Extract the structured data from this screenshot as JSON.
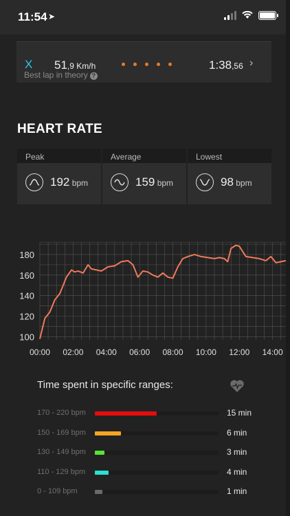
{
  "status_bar": {
    "time": "11:54"
  },
  "lap": {
    "marker": "X",
    "speed_main": "51",
    "speed_decimal": ",9",
    "speed_unit": " Km/h",
    "time_main": "1:38",
    "time_decimal": ",56",
    "caption": "Best lap in theory",
    "accent_color": "#2ec4e8",
    "dots_color": "#e67b2a"
  },
  "section": {
    "title": "HEART RATE"
  },
  "stats": [
    {
      "label": "Peak",
      "value": "192",
      "unit": " bpm",
      "icon": "peak-wave-icon"
    },
    {
      "label": "Average",
      "value": "159",
      "unit": " bpm",
      "icon": "average-wave-icon"
    },
    {
      "label": "Lowest",
      "value": "98",
      "unit": " bpm",
      "icon": "lowest-wave-icon"
    }
  ],
  "chart_data": {
    "type": "line",
    "x_tick_labels": [
      "00:00",
      "02:00",
      "04:00",
      "06:00",
      "08:00",
      "10:00",
      "12:00",
      "14:00"
    ],
    "y_tick_labels": [
      "100",
      "120",
      "140",
      "160",
      "180"
    ],
    "xlim": [
      0,
      14.8
    ],
    "ylim": [
      97,
      192
    ],
    "grid": true,
    "line_color": "#f07a5c",
    "x": [
      0,
      0.3,
      0.6,
      0.9,
      1.2,
      1.4,
      1.6,
      1.9,
      2.1,
      2.3,
      2.6,
      2.9,
      3.1,
      3.4,
      3.7,
      4.1,
      4.5,
      4.9,
      5.3,
      5.6,
      5.9,
      6.2,
      6.5,
      6.8,
      7.1,
      7.4,
      7.7,
      8.0,
      8.3,
      8.6,
      8.9,
      9.3,
      9.7,
      10.1,
      10.5,
      10.8,
      11.1,
      11.3,
      11.5,
      11.8,
      12.0,
      12.4,
      12.8,
      13.2,
      13.6,
      13.9,
      14.2,
      14.5,
      14.8
    ],
    "y": [
      98,
      118,
      124,
      136,
      142,
      150,
      158,
      165,
      163,
      164,
      162,
      170,
      166,
      165,
      164,
      168,
      169,
      173,
      174,
      170,
      158,
      164,
      163,
      160,
      158,
      162,
      158,
      157,
      168,
      176,
      178,
      180,
      178,
      177,
      176,
      177,
      176,
      173,
      186,
      189,
      188,
      178,
      177,
      176,
      174,
      178,
      172,
      173,
      174
    ]
  },
  "ranges": {
    "title": "Time spent in specific ranges:",
    "items": [
      {
        "label": "170 - 220 bpm",
        "minutes": "15 min",
        "fraction": 0.5,
        "color": "#e60c0c"
      },
      {
        "label": "150 - 169 bpm",
        "minutes": "6 min",
        "fraction": 0.21,
        "color": "#f4a523"
      },
      {
        "label": "130 - 149 bpm",
        "minutes": "3 min",
        "fraction": 0.075,
        "color": "#55e632"
      },
      {
        "label": "110 - 129 bpm",
        "minutes": "4 min",
        "fraction": 0.11,
        "color": "#2be0d0"
      },
      {
        "label": "0 - 109 bpm",
        "minutes": "1 min",
        "fraction": 0.06,
        "color": "#6a6a6a"
      }
    ]
  }
}
